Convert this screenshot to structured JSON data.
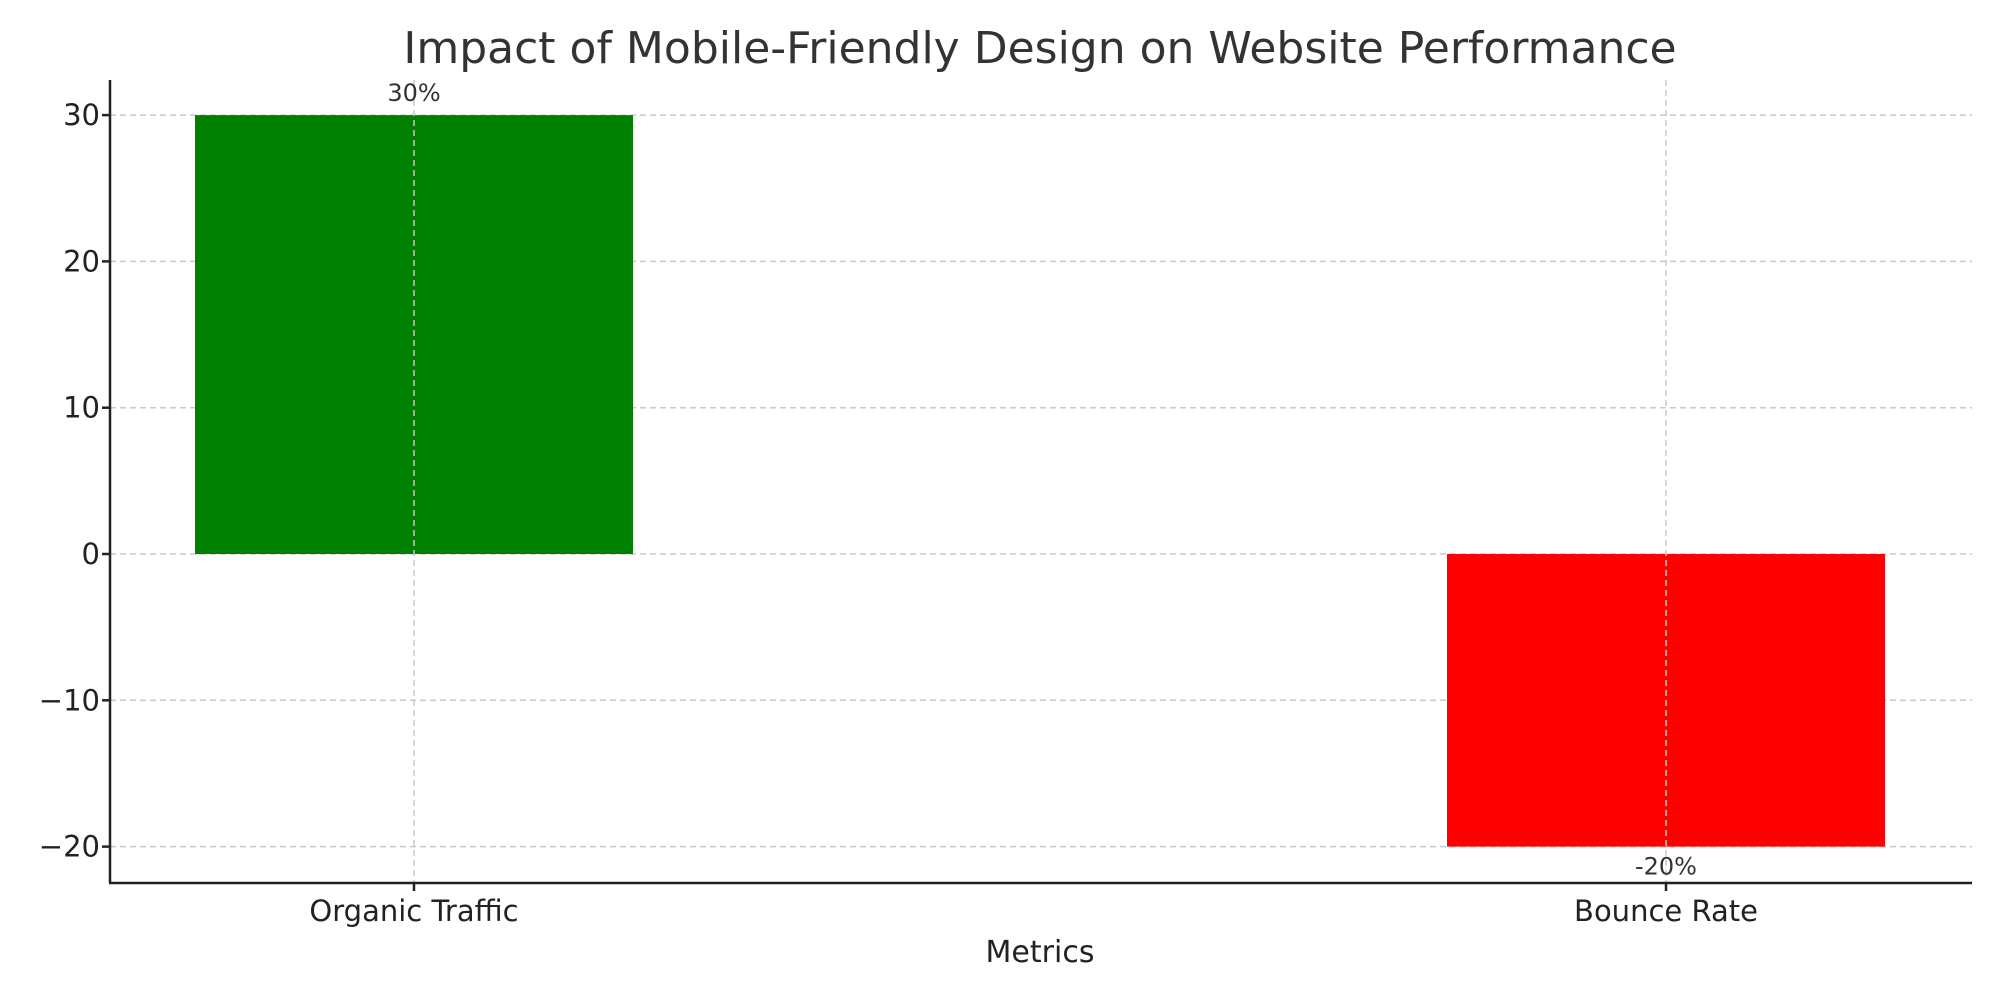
{
  "chart_data": {
    "type": "bar",
    "title": "Impact of Mobile-Friendly Design on Website Performance",
    "xlabel": "Metrics",
    "ylabel": "",
    "categories": [
      "Organic Traffic",
      "Bounce Rate"
    ],
    "values": [
      30,
      -20
    ],
    "value_labels": [
      "30%",
      "-20%"
    ],
    "colors": [
      "#008000",
      "#ff0000"
    ],
    "ylim": [
      -22.5,
      32.5
    ],
    "yticks": [
      -20,
      -10,
      0,
      10,
      20,
      30
    ],
    "ytick_labels": [
      "−20",
      "−10",
      "0",
      "10",
      "20",
      "30"
    ],
    "grid": true,
    "legend": null
  }
}
